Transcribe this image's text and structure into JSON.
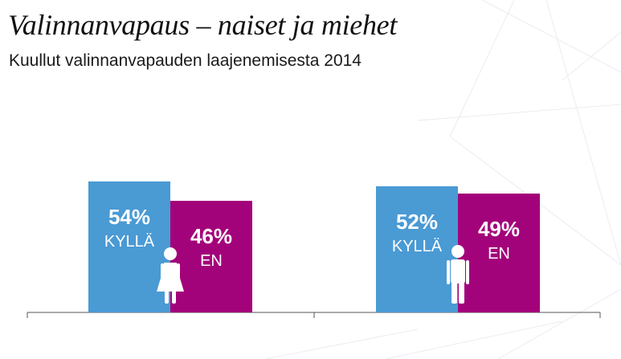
{
  "title": "Valinnanvapaus – naiset ja miehet",
  "subtitle": "Kuullut valinnanvapauden laajenemisesta 2014",
  "colors": {
    "kylla": "#4a9ad4",
    "en": "#a3037a",
    "axis": "#555555",
    "figure": "#ffffff"
  },
  "chart_data": {
    "type": "bar",
    "categories": [
      "naiset",
      "miehet"
    ],
    "category_icons": [
      "female-figure-icon",
      "male-figure-icon"
    ],
    "series": [
      {
        "name": "KYLLÄ",
        "values": [
          54,
          52
        ],
        "labels": [
          "54%",
          "52%"
        ]
      },
      {
        "name": "EN",
        "values": [
          46,
          49
        ],
        "labels": [
          "46%",
          "49%"
        ]
      }
    ],
    "ylim": [
      0,
      100
    ],
    "grid": false,
    "legend": "none"
  }
}
